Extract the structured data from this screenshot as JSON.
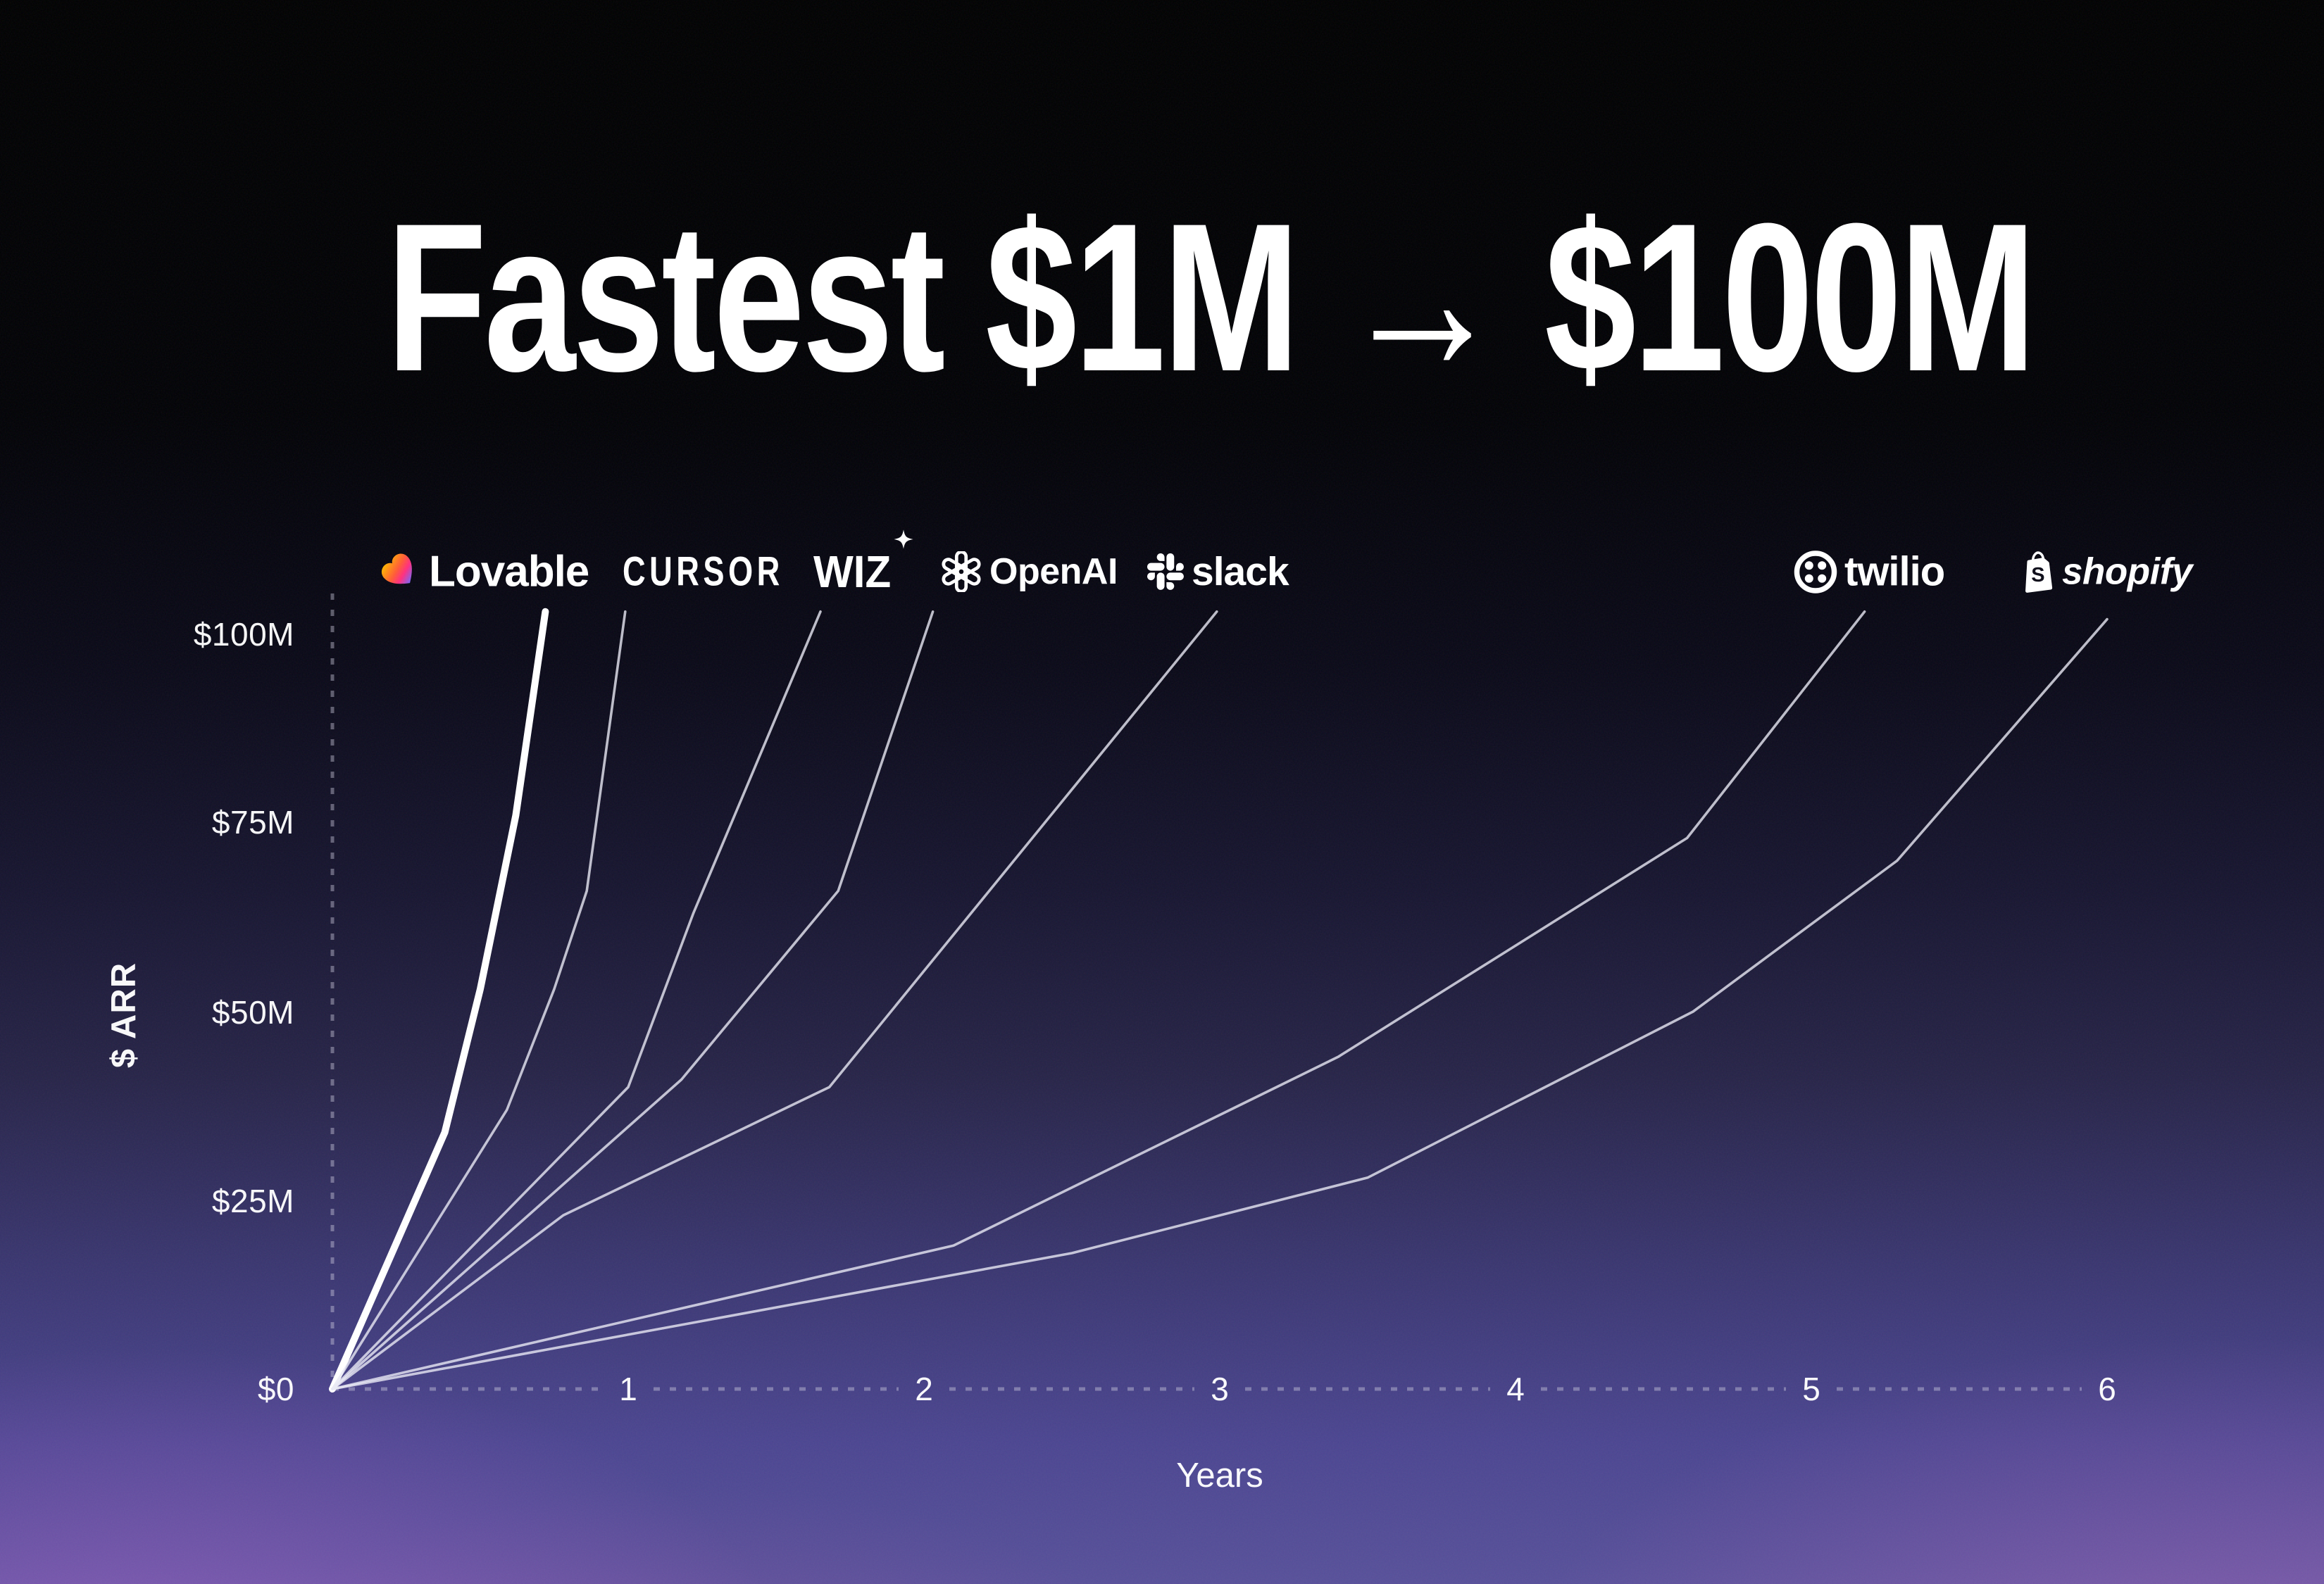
{
  "page": {
    "title_text": "Fastest $1M → $100M"
  },
  "axes": {
    "y_label": "$ ARR",
    "x_label": "Years",
    "y_ticks": [
      "$100M",
      "$75M",
      "$50M",
      "$25M",
      "$0"
    ],
    "x_ticks": [
      "1",
      "2",
      "3",
      "4",
      "5",
      "6"
    ]
  },
  "logos": {
    "lovable": {
      "label": "Lovable"
    },
    "cursor": {
      "label": "CURSOR"
    },
    "wiz": {
      "label": "WIZ"
    },
    "openai": {
      "label": "OpenAI"
    },
    "slack": {
      "label": "slack"
    },
    "twilio": {
      "label": "twilio"
    },
    "shopify": {
      "label": "shopify"
    }
  },
  "colors": {
    "background_top": "#010102",
    "background_bottom": "#575099",
    "corner_glow": "#d86ce6",
    "line_thin": "#e9e8f4",
    "line_thin_opacity": 0.8,
    "line_emphasis": "#ffffff",
    "axis_dot": "#cfcde0",
    "lovable_gradient": [
      "#ffb300",
      "#ff5a36",
      "#ff2e7e",
      "#6f67ff"
    ]
  },
  "chart_data": {
    "type": "line",
    "title": "Fastest $1M → $100M",
    "xlabel": "Years",
    "ylabel": "$ ARR",
    "xlim": [
      0,
      6
    ],
    "ylim": [
      0,
      105
    ],
    "x_tick_values": [
      1,
      2,
      3,
      4,
      5,
      6
    ],
    "y_tick_values": [
      100,
      75,
      50,
      25,
      0
    ],
    "grid": false,
    "legend_position": "logos-above-line-tops",
    "units": "ARR in $ millions, time in years from $1M ARR",
    "series": [
      {
        "name": "Lovable",
        "emphasis": true,
        "points": [
          [
            0,
            0
          ],
          [
            0.38,
            34
          ],
          [
            0.5,
            53
          ],
          [
            0.62,
            76
          ],
          [
            0.72,
            103
          ]
        ]
      },
      {
        "name": "Cursor",
        "points": [
          [
            0,
            0
          ],
          [
            0.59,
            37
          ],
          [
            0.75,
            53
          ],
          [
            0.86,
            66
          ],
          [
            0.99,
            103
          ]
        ]
      },
      {
        "name": "Wiz",
        "points": [
          [
            0,
            0
          ],
          [
            1.0,
            40
          ],
          [
            1.22,
            63
          ],
          [
            1.65,
            103
          ]
        ]
      },
      {
        "name": "OpenAI",
        "points": [
          [
            0,
            0
          ],
          [
            1.18,
            41
          ],
          [
            1.71,
            66
          ],
          [
            2.03,
            103
          ]
        ]
      },
      {
        "name": "Slack",
        "points": [
          [
            0,
            0
          ],
          [
            0.78,
            23
          ],
          [
            1.68,
            40
          ],
          [
            2.99,
            103
          ]
        ]
      },
      {
        "name": "Twilio",
        "points": [
          [
            0,
            0
          ],
          [
            2.1,
            19
          ],
          [
            3.4,
            44
          ],
          [
            4.58,
            73
          ],
          [
            5.18,
            103
          ]
        ]
      },
      {
        "name": "Shopify",
        "points": [
          [
            0,
            0
          ],
          [
            2.5,
            18
          ],
          [
            3.5,
            28
          ],
          [
            4.6,
            50
          ],
          [
            5.29,
            70
          ],
          [
            6.0,
            102
          ]
        ]
      }
    ]
  }
}
